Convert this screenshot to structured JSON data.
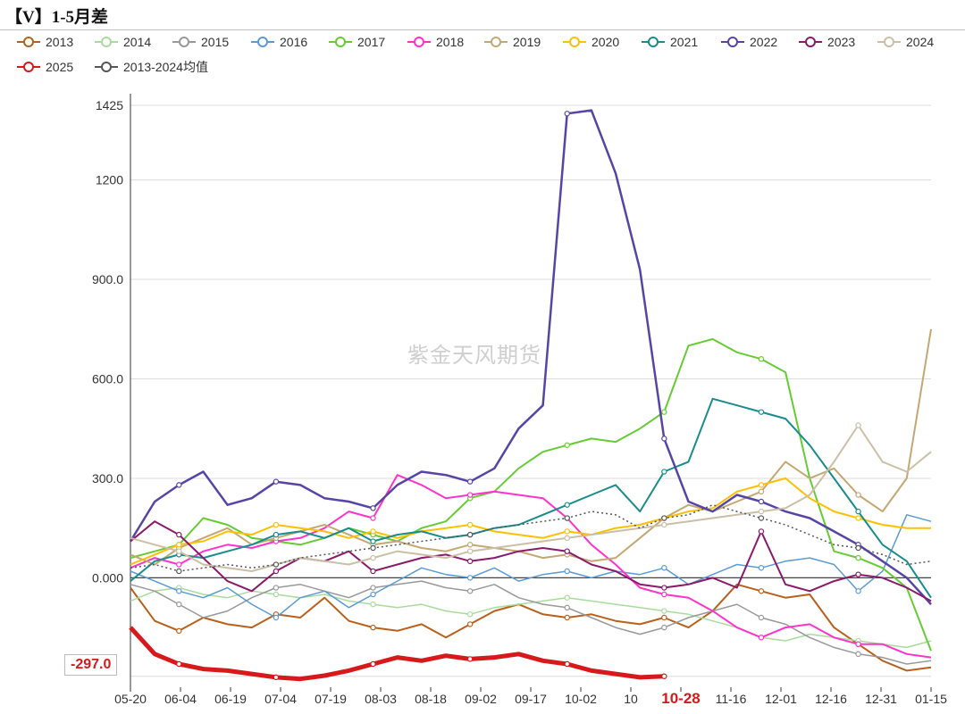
{
  "title": "【V】1-5月差",
  "watermark": "紫金天风期货",
  "last_value_label": "-297.0",
  "chart_data": {
    "type": "line",
    "title": "【V】1-5月差",
    "ylim": [
      -330,
      1460
    ],
    "yticks": [
      1425,
      1200,
      900.0,
      600.0,
      300.0,
      0.0
    ],
    "ytick_labels": [
      "1425",
      "1200",
      "900.0",
      "600.0",
      "300.0",
      "0.000"
    ],
    "xtick_labels": [
      "05-20",
      "06-04",
      "06-19",
      "07-04",
      "07-19",
      "08-03",
      "08-18",
      "09-02",
      "09-17",
      "10-02",
      "10",
      "10-28",
      "11-16",
      "12-01",
      "12-16",
      "12-31",
      "01-15"
    ],
    "highlight_xtick": "10-28",
    "grid": true,
    "legend": "top",
    "series": [
      {
        "name": "2013",
        "color": "#b8611c",
        "width": 2,
        "values": [
          -30,
          -130,
          -160,
          -120,
          -140,
          -150,
          -110,
          -120,
          -60,
          -130,
          -150,
          -160,
          -140,
          -180,
          -140,
          -100,
          -80,
          -110,
          -120,
          -110,
          -130,
          -140,
          -120,
          -150,
          -100,
          -20,
          -40,
          -60,
          -50,
          -150,
          -200,
          -250,
          -280,
          -270
        ]
      },
      {
        "name": "2014",
        "color": "#a8dc9c",
        "width": 1.5,
        "values": [
          -70,
          -40,
          -30,
          -50,
          -60,
          -40,
          -50,
          -60,
          -50,
          -70,
          -80,
          -90,
          -80,
          -100,
          -110,
          -90,
          -80,
          -70,
          -60,
          -70,
          -80,
          -90,
          -100,
          -110,
          -130,
          -150,
          -180,
          -190,
          -170,
          -180,
          -190,
          -200,
          -210,
          -190
        ]
      },
      {
        "name": "2015",
        "color": "#999999",
        "width": 1.5,
        "values": [
          -20,
          -40,
          -80,
          -120,
          -100,
          -60,
          -30,
          -20,
          -40,
          -60,
          -30,
          -20,
          -10,
          -30,
          -40,
          -20,
          -60,
          -80,
          -90,
          -120,
          -150,
          -170,
          -150,
          -120,
          -100,
          -80,
          -120,
          -140,
          -180,
          -210,
          -230,
          -240,
          -260,
          -250
        ]
      },
      {
        "name": "2016",
        "color": "#5b9bd5",
        "width": 1.5,
        "values": [
          20,
          -10,
          -40,
          -60,
          -30,
          -80,
          -120,
          -60,
          -40,
          -90,
          -50,
          -10,
          30,
          10,
          0,
          30,
          -10,
          10,
          20,
          0,
          20,
          10,
          30,
          -20,
          10,
          40,
          30,
          50,
          60,
          40,
          -40,
          20,
          190,
          170
        ]
      },
      {
        "name": "2017",
        "color": "#66cc33",
        "width": 2,
        "values": [
          60,
          80,
          100,
          180,
          160,
          120,
          110,
          100,
          120,
          150,
          130,
          110,
          150,
          170,
          240,
          260,
          330,
          380,
          400,
          420,
          410,
          450,
          500,
          700,
          720,
          680,
          660,
          620,
          300,
          80,
          60,
          30,
          -30,
          -220
        ]
      },
      {
        "name": "2018",
        "color": "#ff33cc",
        "width": 2,
        "values": [
          30,
          60,
          40,
          80,
          100,
          90,
          110,
          120,
          150,
          200,
          180,
          310,
          280,
          240,
          250,
          260,
          250,
          240,
          180,
          100,
          40,
          -30,
          -50,
          -60,
          -100,
          -150,
          -180,
          -150,
          -140,
          -180,
          -200,
          -200,
          -230,
          -240
        ]
      },
      {
        "name": "2019",
        "color": "#c4a872",
        "width": 2,
        "values": [
          70,
          40,
          90,
          120,
          150,
          100,
          120,
          140,
          160,
          130,
          100,
          110,
          90,
          80,
          100,
          90,
          80,
          60,
          70,
          50,
          60,
          120,
          180,
          220,
          200,
          230,
          260,
          350,
          300,
          330,
          250,
          200,
          300,
          750
        ]
      },
      {
        "name": "2020",
        "color": "#ffc000",
        "width": 2,
        "values": [
          40,
          70,
          100,
          110,
          140,
          130,
          160,
          150,
          140,
          120,
          140,
          120,
          140,
          150,
          160,
          140,
          130,
          120,
          140,
          130,
          150,
          160,
          180,
          200,
          210,
          260,
          280,
          300,
          240,
          200,
          180,
          160,
          150,
          150
        ]
      },
      {
        "name": "2021",
        "color": "#198c8c",
        "width": 2,
        "values": [
          -10,
          50,
          70,
          60,
          80,
          100,
          130,
          140,
          120,
          150,
          110,
          130,
          140,
          120,
          130,
          150,
          160,
          190,
          220,
          250,
          280,
          200,
          320,
          350,
          540,
          520,
          500,
          480,
          400,
          300,
          200,
          100,
          50,
          -60
        ]
      },
      {
        "name": "2022",
        "color": "#5745a6",
        "width": 2.5,
        "values": [
          110,
          230,
          280,
          320,
          220,
          240,
          290,
          280,
          240,
          230,
          210,
          280,
          320,
          310,
          290,
          330,
          450,
          520,
          1400,
          1410,
          1220,
          930,
          420,
          230,
          200,
          250,
          230,
          200,
          180,
          140,
          100,
          50,
          0,
          -80
        ]
      },
      {
        "name": "2023",
        "color": "#8b1a6b",
        "width": 2,
        "values": [
          110,
          170,
          130,
          60,
          -10,
          -40,
          20,
          60,
          50,
          80,
          20,
          40,
          60,
          70,
          50,
          60,
          80,
          90,
          80,
          40,
          20,
          -20,
          -30,
          -20,
          0,
          -30,
          140,
          -20,
          -40,
          -10,
          10,
          0,
          -30,
          -70
        ]
      },
      {
        "name": "2024",
        "color": "#cbbfa6",
        "width": 2,
        "values": [
          120,
          100,
          80,
          40,
          30,
          20,
          40,
          60,
          50,
          40,
          60,
          80,
          70,
          60,
          80,
          90,
          100,
          110,
          120,
          130,
          140,
          150,
          160,
          170,
          180,
          190,
          200,
          210,
          250,
          350,
          460,
          350,
          320,
          380
        ]
      },
      {
        "name": "2025",
        "color": "#d7191c",
        "width": 5,
        "values": [
          -150,
          -230,
          -260,
          -275,
          -280,
          -290,
          -300,
          -305,
          -295,
          -280,
          -260,
          -240,
          -250,
          -235,
          -245,
          -240,
          -230,
          -250,
          -260,
          -280,
          -290,
          -300,
          -297
        ]
      },
      {
        "name": "2013-2024均值",
        "color": "#555555",
        "width": 1.5,
        "dash": true,
        "values": [
          30,
          40,
          20,
          30,
          40,
          30,
          40,
          60,
          70,
          80,
          90,
          100,
          110,
          120,
          130,
          150,
          160,
          170,
          180,
          200,
          190,
          150,
          180,
          190,
          220,
          200,
          180,
          160,
          130,
          100,
          90,
          70,
          40,
          50
        ]
      }
    ]
  }
}
